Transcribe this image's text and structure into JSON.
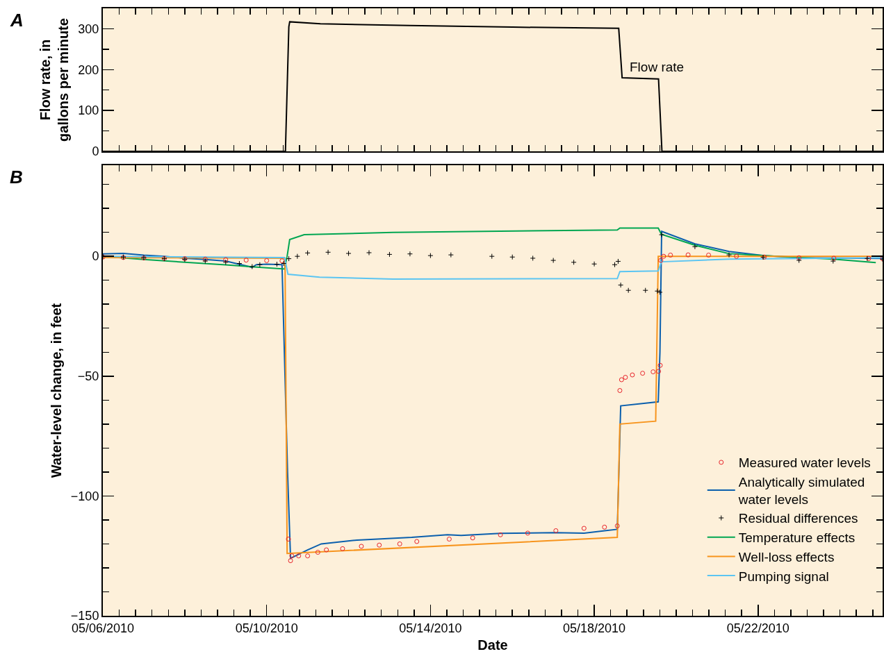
{
  "chart_data": [
    {
      "type": "line",
      "ylabel": "Flow rate, in gallons per minute",
      "xlim": [
        "2010-05-06T00:00",
        "2010-05-25T01:00"
      ],
      "ylim": [
        0,
        350
      ],
      "tick_labels": "y",
      "grid": false,
      "legend": false,
      "yticks": [
        0,
        {
          "value": 50,
          "label": null
        },
        100,
        {
          "value": 150,
          "label": null
        },
        200,
        {
          "value": 250,
          "label": null
        },
        300,
        {
          "value": 350,
          "label": null
        }
      ],
      "xticks": [
        {
          "value": "2010-05-06T00:00",
          "label": null
        },
        {
          "value": "2010-05-06T09:36",
          "label": null
        },
        {
          "value": "2010-05-06T19:12",
          "label": null
        },
        {
          "value": "2010-05-07T04:48",
          "label": null
        },
        {
          "value": "2010-05-07T14:24",
          "label": null
        },
        {
          "value": "2010-05-08T00:00",
          "label": null
        },
        {
          "value": "2010-05-08T09:36",
          "label": null
        },
        {
          "value": "2010-05-08T19:12",
          "label": null
        },
        {
          "value": "2010-05-09T04:48",
          "label": null
        },
        {
          "value": "2010-05-09T14:24",
          "label": null
        },
        {
          "value": "2010-05-10T00:00",
          "label": null
        },
        {
          "value": "2010-05-10T09:36",
          "label": null
        },
        {
          "value": "2010-05-10T19:12",
          "label": null
        },
        {
          "value": "2010-05-11T04:48",
          "label": null
        },
        {
          "value": "2010-05-11T14:24",
          "label": null
        },
        {
          "value": "2010-05-12T00:00",
          "label": null
        },
        {
          "value": "2010-05-12T09:36",
          "label": null
        },
        {
          "value": "2010-05-12T19:12",
          "label": null
        },
        {
          "value": "2010-05-13T04:48",
          "label": null
        },
        {
          "value": "2010-05-13T14:24",
          "label": null
        },
        {
          "value": "2010-05-14T00:00",
          "label": null
        },
        {
          "value": "2010-05-14T09:36",
          "label": null
        },
        {
          "value": "2010-05-14T19:12",
          "label": null
        },
        {
          "value": "2010-05-15T04:48",
          "label": null
        },
        {
          "value": "2010-05-15T14:24",
          "label": null
        },
        {
          "value": "2010-05-16T00:00",
          "label": null
        },
        {
          "value": "2010-05-16T09:36",
          "label": null
        },
        {
          "value": "2010-05-16T19:12",
          "label": null
        },
        {
          "value": "2010-05-17T04:48",
          "label": null
        },
        {
          "value": "2010-05-17T14:24",
          "label": null
        },
        {
          "value": "2010-05-18T00:00",
          "label": null
        },
        {
          "value": "2010-05-18T09:36",
          "label": null
        },
        {
          "value": "2010-05-18T19:12",
          "label": null
        },
        {
          "value": "2010-05-19T04:48",
          "label": null
        },
        {
          "value": "2010-05-19T14:24",
          "label": null
        },
        {
          "value": "2010-05-20T00:00",
          "label": null
        },
        {
          "value": "2010-05-20T09:36",
          "label": null
        },
        {
          "value": "2010-05-20T19:12",
          "label": null
        },
        {
          "value": "2010-05-21T04:48",
          "label": null
        },
        {
          "value": "2010-05-21T14:24",
          "label": null
        },
        {
          "value": "2010-05-22T00:00",
          "label": null
        },
        {
          "value": "2010-05-22T09:36",
          "label": null
        },
        {
          "value": "2010-05-22T19:12",
          "label": null
        },
        {
          "value": "2010-05-23T04:48",
          "label": null
        },
        {
          "value": "2010-05-23T14:24",
          "label": null
        },
        {
          "value": "2010-05-24T00:00",
          "label": null
        },
        {
          "value": "2010-05-24T09:36",
          "label": null
        },
        {
          "value": "2010-05-24T19:12",
          "label": null
        }
      ],
      "annotations": [
        "A",
        "Flow rate"
      ],
      "series": [
        {
          "color": "#000000",
          "x": [
            "2010-05-06T00:00",
            "2010-05-10T11:00",
            "2010-05-10T13:00",
            "2010-05-10T13:30",
            "2010-05-11T07:30",
            "2010-05-13T12:00",
            "2010-05-16T00:00",
            "2010-05-18T14:20",
            "2010-05-18T16:20",
            "2010-05-19T13:40",
            "2010-05-19T15:40",
            "2010-05-25T01:00"
          ],
          "values": [
            0,
            0,
            305,
            317,
            312,
            308,
            304,
            301,
            180,
            177,
            0,
            0
          ]
        }
      ]
    },
    {
      "type": "line",
      "xlabel": "Date",
      "ylabel": "Water-level change, in feet",
      "xlim": [
        "2010-05-06T00:00",
        "2010-05-25T01:00"
      ],
      "ylim": [
        -150,
        38
      ],
      "grid": false,
      "legend": "bottom right",
      "yticks": [
        {
          "value": -150,
          "label": "−150"
        },
        {
          "value": -140,
          "label": null
        },
        {
          "value": -130,
          "label": null
        },
        {
          "value": -120,
          "label": null
        },
        {
          "value": -110,
          "label": null
        },
        {
          "value": -100,
          "label": "−100"
        },
        {
          "value": -90,
          "label": null
        },
        {
          "value": -80,
          "label": null
        },
        {
          "value": -70,
          "label": null
        },
        {
          "value": -60,
          "label": null
        },
        {
          "value": -50,
          "label": "−50"
        },
        {
          "value": -40,
          "label": null
        },
        {
          "value": -30,
          "label": null
        },
        {
          "value": -20,
          "label": null
        },
        {
          "value": -10,
          "label": null
        },
        0,
        {
          "value": 10,
          "label": null
        },
        {
          "value": 20,
          "label": null
        },
        {
          "value": 30,
          "label": null
        }
      ],
      "xticks": [
        {
          "value": "2010-05-06T00:00",
          "label": "05/06/2010"
        },
        {
          "value": "2010-05-06T09:36",
          "label": null
        },
        {
          "value": "2010-05-06T19:12",
          "label": null
        },
        {
          "value": "2010-05-07T04:48",
          "label": null
        },
        {
          "value": "2010-05-07T14:24",
          "label": null
        },
        {
          "value": "2010-05-08T00:00",
          "label": null
        },
        {
          "value": "2010-05-08T09:36",
          "label": null
        },
        {
          "value": "2010-05-08T19:12",
          "label": null
        },
        {
          "value": "2010-05-09T04:48",
          "label": null
        },
        {
          "value": "2010-05-09T14:24",
          "label": null
        },
        {
          "value": "2010-05-10T00:00",
          "label": "05/10/2010"
        },
        {
          "value": "2010-05-10T09:36",
          "label": null
        },
        {
          "value": "2010-05-10T19:12",
          "label": null
        },
        {
          "value": "2010-05-11T04:48",
          "label": null
        },
        {
          "value": "2010-05-11T14:24",
          "label": null
        },
        {
          "value": "2010-05-12T00:00",
          "label": null
        },
        {
          "value": "2010-05-12T09:36",
          "label": null
        },
        {
          "value": "2010-05-12T19:12",
          "label": null
        },
        {
          "value": "2010-05-13T04:48",
          "label": null
        },
        {
          "value": "2010-05-13T14:24",
          "label": null
        },
        {
          "value": "2010-05-14T00:00",
          "label": "05/14/2010"
        },
        {
          "value": "2010-05-14T09:36",
          "label": null
        },
        {
          "value": "2010-05-14T19:12",
          "label": null
        },
        {
          "value": "2010-05-15T04:48",
          "label": null
        },
        {
          "value": "2010-05-15T14:24",
          "label": null
        },
        {
          "value": "2010-05-16T00:00",
          "label": null
        },
        {
          "value": "2010-05-16T09:36",
          "label": null
        },
        {
          "value": "2010-05-16T19:12",
          "label": null
        },
        {
          "value": "2010-05-17T04:48",
          "label": null
        },
        {
          "value": "2010-05-17T14:24",
          "label": null
        },
        {
          "value": "2010-05-18T00:00",
          "label": "05/18/2010"
        },
        {
          "value": "2010-05-18T09:36",
          "label": null
        },
        {
          "value": "2010-05-18T19:12",
          "label": null
        },
        {
          "value": "2010-05-19T04:48",
          "label": null
        },
        {
          "value": "2010-05-19T14:24",
          "label": null
        },
        {
          "value": "2010-05-20T00:00",
          "label": null
        },
        {
          "value": "2010-05-20T09:36",
          "label": null
        },
        {
          "value": "2010-05-20T19:12",
          "label": null
        },
        {
          "value": "2010-05-21T04:48",
          "label": null
        },
        {
          "value": "2010-05-21T14:24",
          "label": null
        },
        {
          "value": "2010-05-22T00:00",
          "label": "05/22/2010"
        },
        {
          "value": "2010-05-22T09:36",
          "label": null
        },
        {
          "value": "2010-05-22T19:12",
          "label": null
        },
        {
          "value": "2010-05-23T04:48",
          "label": null
        },
        {
          "value": "2010-05-23T14:24",
          "label": null
        },
        {
          "value": "2010-05-24T00:00",
          "label": null
        },
        {
          "value": "2010-05-24T09:36",
          "label": null
        },
        {
          "value": "2010-05-24T19:12",
          "label": null
        }
      ],
      "annotations": [
        "B"
      ],
      "series": [
        {
          "name": "Measured water levels",
          "type": "scatter",
          "marker": "circle",
          "color": "#e8232a",
          "x": [
            "2010-05-06T00:00",
            "2010-05-06T12:00",
            "2010-05-07T00:00",
            "2010-05-07T12:00",
            "2010-05-08T00:00",
            "2010-05-08T12:00",
            "2010-05-09T00:00",
            "2010-05-09T12:00",
            "2010-05-10T00:00",
            "2010-05-10T09:00",
            "2010-05-10T12:45",
            "2010-05-10T14:00",
            "2010-05-10T14:45",
            "2010-05-10T18:45",
            "2010-05-11T00:00",
            "2010-05-11T06:00",
            "2010-05-11T11:00",
            "2010-05-11T20:30",
            "2010-05-12T07:30",
            "2010-05-12T18:00",
            "2010-05-13T06:00",
            "2010-05-13T16:00",
            "2010-05-14T11:00",
            "2010-05-15T00:45",
            "2010-05-15T17:00",
            "2010-05-16T09:00",
            "2010-05-17T01:30",
            "2010-05-17T18:00",
            "2010-05-18T06:00",
            "2010-05-18T13:30",
            "2010-05-18T15:00",
            "2010-05-18T16:00",
            "2010-05-18T18:15",
            "2010-05-18T22:20",
            "2010-05-19T04:20",
            "2010-05-19T10:30",
            "2010-05-19T13:40",
            "2010-05-19T14:40",
            "2010-05-19T15:00",
            "2010-05-19T16:40",
            "2010-05-19T20:40",
            "2010-05-20T07:00",
            "2010-05-20T19:00",
            "2010-05-21T11:20",
            "2010-05-22T03:40",
            "2010-05-23T00:00",
            "2010-05-23T20:25",
            "2010-05-24T16:50",
            "2010-05-25T01:00"
          ],
          "values": [
            -0.3,
            -0.5,
            -0.7,
            -0.9,
            -1.0,
            -1.2,
            -1.4,
            -1.6,
            -1.8,
            -1.9,
            -118,
            -127,
            -125,
            -125,
            -125,
            -123.5,
            -122.5,
            -122,
            -121,
            -120.5,
            -120,
            -119,
            -118,
            -117.5,
            -116.2,
            -115.5,
            -114.5,
            -113.5,
            -113,
            -112.5,
            -56,
            -51.5,
            -50.5,
            -49.5,
            -48.8,
            -48.2,
            -48,
            -45.5,
            -1.7,
            0,
            0.5,
            0.6,
            0.5,
            0,
            -0.3,
            -0.6,
            -0.8,
            -0.9,
            -1
          ]
        },
        {
          "name": "Analytically simulated water levels",
          "color": "#0a5fad",
          "x": [
            "2010-05-06T00:00",
            "2010-05-06T12:00",
            "2010-05-07T00:00",
            "2010-05-07T12:00",
            "2010-05-08T00:00",
            "2010-05-08T12:00",
            "2010-05-09T00:00",
            "2010-05-09T15:30",
            "2010-05-09T18:00",
            "2010-05-10T00:00",
            "2010-05-10T09:00",
            "2010-05-10T12:15",
            "2010-05-10T14:00",
            "2010-05-11T00:00",
            "2010-05-11T08:00",
            "2010-05-12T05:00",
            "2010-05-13T13:00",
            "2010-05-14T10:00",
            "2010-05-14T18:00",
            "2010-05-15T17:00",
            "2010-05-17T01:00",
            "2010-05-17T18:00",
            "2010-05-18T13:30",
            "2010-05-18T15:30",
            "2010-05-19T13:30",
            "2010-05-19T14:30",
            "2010-05-19T15:30",
            "2010-05-20T11:00",
            "2010-05-21T07:00",
            "2010-05-22T03:40",
            "2010-05-23T00:00",
            "2010-05-25T01:00"
          ],
          "values": [
            1,
            1.2,
            0.5,
            0,
            -0.8,
            -1.3,
            -2,
            -4.6,
            -3.5,
            -3.3,
            -3.5,
            -90,
            -126,
            -122.5,
            -120,
            -118.4,
            -117.3,
            -116.2,
            -116.5,
            -115.6,
            -115.3,
            -115.5,
            -113.9,
            -62.4,
            -60.7,
            -40,
            10.4,
            5.2,
            2,
            0.3,
            -0.6,
            -0.9
          ]
        },
        {
          "name": "Residual differences",
          "type": "scatter",
          "marker": "cross",
          "color": "#000000",
          "x": [
            "2010-05-06T00:00",
            "2010-05-06T12:00",
            "2010-05-07T00:00",
            "2010-05-07T12:00",
            "2010-05-08T00:00",
            "2010-05-08T12:00",
            "2010-05-09T00:00",
            "2010-05-09T08:00",
            "2010-05-09T15:30",
            "2010-05-09T20:00",
            "2010-05-10T06:00",
            "2010-05-10T10:00",
            "2010-05-10T13:00",
            "2010-05-10T18:00",
            "2010-05-11T00:00",
            "2010-05-11T12:00",
            "2010-05-12T00:00",
            "2010-05-12T12:00",
            "2010-05-13T00:00",
            "2010-05-13T12:00",
            "2010-05-14T00:00",
            "2010-05-14T12:00",
            "2010-05-15T12:00",
            "2010-05-16T00:00",
            "2010-05-16T12:00",
            "2010-05-17T00:00",
            "2010-05-17T12:00",
            "2010-05-18T00:00",
            "2010-05-18T12:00",
            "2010-05-18T14:00",
            "2010-05-18T15:30",
            "2010-05-18T20:00",
            "2010-05-19T06:00",
            "2010-05-19T13:00",
            "2010-05-19T14:30",
            "2010-05-19T15:30",
            "2010-05-20T11:00",
            "2010-05-21T07:00",
            "2010-05-22T03:00",
            "2010-05-23T00:00",
            "2010-05-23T20:00",
            "2010-05-24T16:00",
            "2010-05-25T01:00"
          ],
          "values": [
            0,
            -0.3,
            -0.6,
            -1,
            -1.3,
            -2,
            -2.5,
            -3,
            -4.3,
            -3.5,
            -3.3,
            -3,
            -1,
            0,
            1.4,
            1.7,
            1.2,
            1.5,
            0.8,
            1.0,
            0.3,
            0.6,
            0,
            -0.3,
            -0.8,
            -1.7,
            -2.5,
            -3.2,
            -3.5,
            -2.1,
            -12,
            -14.2,
            -14.2,
            -14.5,
            -15,
            9,
            4,
            0.6,
            -0.4,
            -1.7,
            -2,
            -0.9,
            -1.2
          ]
        },
        {
          "name": "Temperature effects",
          "color": "#00a651",
          "x": [
            "2010-05-06T00:00",
            "2010-05-07T00:00",
            "2010-05-08T00:00",
            "2010-05-09T00:00",
            "2010-05-10T00:00",
            "2010-05-10T10:30",
            "2010-05-10T12:00",
            "2010-05-10T13:30",
            "2010-05-10T22:00",
            "2010-05-13T02:00",
            "2010-05-18T13:30",
            "2010-05-18T15:00",
            "2010-05-19T13:30",
            "2010-05-19T15:20",
            "2010-05-20T11:00",
            "2010-05-21T07:00",
            "2010-05-22T03:40",
            "2010-05-23T20:00",
            "2010-05-24T21:00"
          ],
          "values": [
            0,
            -1.3,
            -2.5,
            -3.6,
            -4.8,
            -5.3,
            0,
            7,
            9,
            10,
            11,
            11.8,
            11.8,
            9.2,
            4.6,
            1.1,
            0.3,
            -1.2,
            -2.6
          ]
        },
        {
          "name": "Well-loss effects",
          "color": "#f7941d",
          "x": [
            "2010-05-06T00:00",
            "2010-05-10T10:45",
            "2010-05-10T12:00",
            "2010-05-18T13:30",
            "2010-05-18T15:00",
            "2010-05-19T12:00",
            "2010-05-19T13:30",
            "2010-05-25T01:00"
          ],
          "values": [
            -0.5,
            -0.8,
            -124,
            -117.3,
            -70,
            -68.8,
            0,
            0
          ]
        },
        {
          "name": "Pumping signal",
          "color": "#5bc5f2",
          "x": [
            "2010-05-06T00:00",
            "2010-05-10T10:30",
            "2010-05-10T12:30",
            "2010-05-11T07:00",
            "2010-05-13T02:00",
            "2010-05-18T13:30",
            "2010-05-18T15:00",
            "2010-05-19T13:30",
            "2010-05-19T15:20",
            "2010-05-21T07:00",
            "2010-05-25T01:00"
          ],
          "values": [
            0,
            -0.5,
            -7.5,
            -8.7,
            -9.5,
            -9.3,
            -6.4,
            -6.1,
            -2.3,
            -1.2,
            -0.6
          ]
        }
      ]
    }
  ]
}
